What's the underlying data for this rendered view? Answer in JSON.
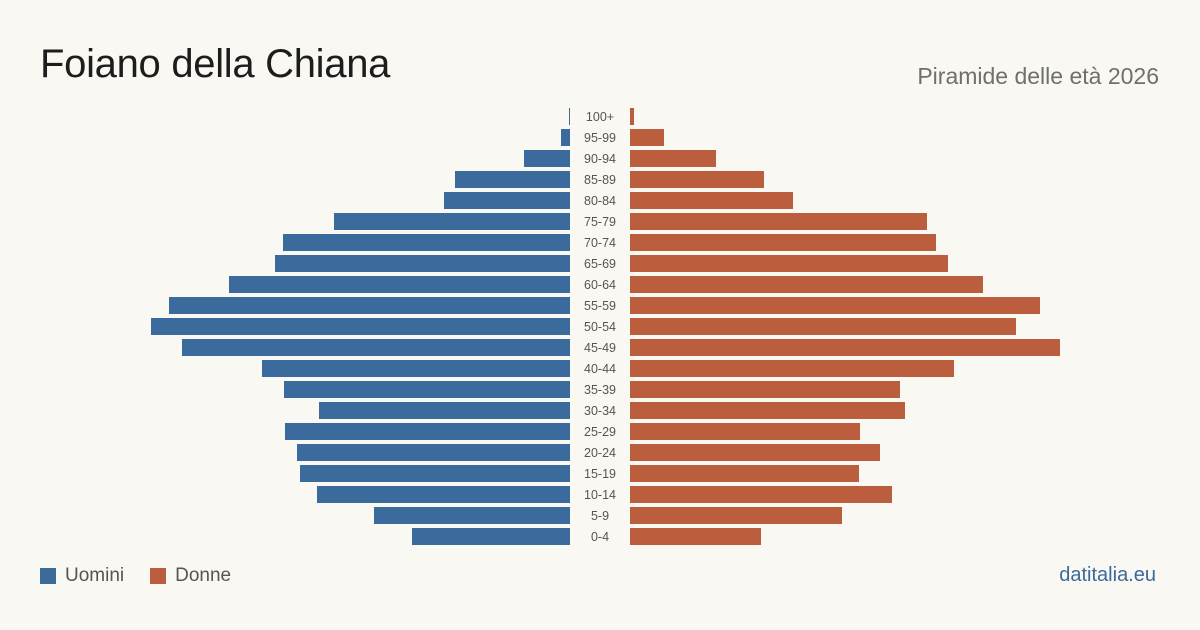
{
  "header": {
    "title": "Foiano della Chiana",
    "subtitle": "Piramide delle età 2026"
  },
  "legend": {
    "men_label": "Uomini",
    "women_label": "Donne"
  },
  "brand": "datitalia.eu",
  "colors": {
    "men": "#3b6b9c",
    "women": "#bb5e3e",
    "background": "#faf8f3",
    "age_label": "#555555"
  },
  "chart_data": {
    "type": "bar",
    "orientation": "horizontal",
    "layout": "population-pyramid",
    "title": "Foiano della Chiana",
    "subtitle": "Piramide delle età 2026",
    "categories": [
      "100+",
      "95-99",
      "90-94",
      "85-89",
      "80-84",
      "75-79",
      "70-74",
      "65-69",
      "60-64",
      "55-59",
      "50-54",
      "45-49",
      "40-44",
      "35-39",
      "30-34",
      "25-29",
      "20-24",
      "15-19",
      "10-14",
      "5-9",
      "0-4"
    ],
    "series": [
      {
        "name": "Uomini",
        "values": [
          1,
          9,
          46,
          115,
          126,
          236,
          287,
          295,
          341,
          401,
          419,
          388,
          308,
          286,
          251,
          285,
          273,
          270,
          253,
          196,
          158
        ]
      },
      {
        "name": "Donne",
        "values": [
          4,
          34,
          86,
          134,
          163,
          297,
          306,
          318,
          353,
          410,
          386,
          430,
          324,
          270,
          275,
          230,
          250,
          229,
          262,
          212,
          131
        ]
      }
    ],
    "legend_position": "bottom-left",
    "grid": false
  }
}
